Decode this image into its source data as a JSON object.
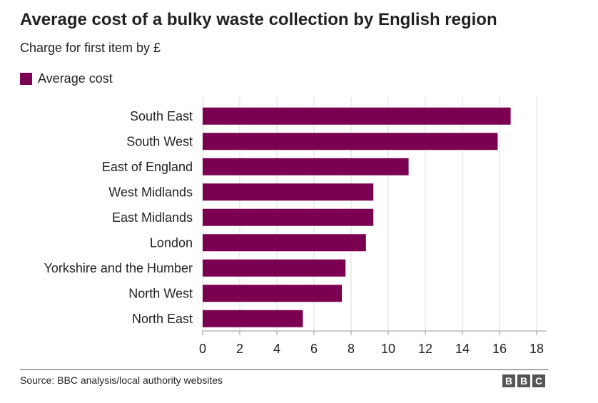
{
  "chart_data": {
    "type": "bar",
    "orientation": "horizontal",
    "title": "Average cost of a bulky waste collection by English region",
    "subtitle": "Charge for first item by £",
    "categories": [
      "South East",
      "South West",
      "East of England",
      "West Midlands",
      "East Midlands",
      "London",
      "Yorkshire and the Humber",
      "North West",
      "North East"
    ],
    "series": [
      {
        "name": "Average cost",
        "color": "#7b0051",
        "values": [
          16.6,
          15.9,
          11.1,
          9.2,
          9.2,
          8.8,
          7.7,
          7.5,
          5.4
        ]
      }
    ],
    "xlim": [
      0,
      18
    ],
    "xticks": [
      0,
      2,
      4,
      6,
      8,
      10,
      12,
      14,
      16,
      18
    ],
    "xtick_labels": [
      "0",
      "2",
      "4",
      "6",
      "8",
      "10",
      "12",
      "14",
      "16",
      "18"
    ],
    "grid": true,
    "legend_position": "top-left"
  },
  "footer": {
    "source": "Source: BBC analysis/local authority websites",
    "logo_letters": [
      "B",
      "B",
      "C"
    ]
  },
  "colors": {
    "bar": "#7b0051",
    "grid": "#dddddd",
    "axis": "#999999",
    "text": "#222222",
    "logo": "#555555"
  }
}
